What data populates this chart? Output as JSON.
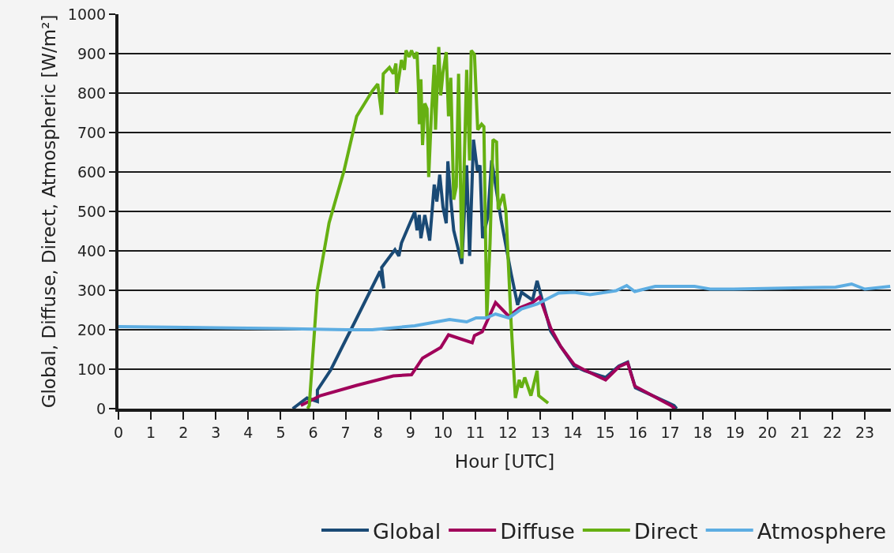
{
  "chart_data": {
    "type": "line",
    "xlabel": "Hour [UTC]",
    "ylabel": "Global, Diffuse, Direct, Atmospheric [W/m²]",
    "xlim": [
      0,
      23.8
    ],
    "xticks": [
      0,
      1,
      2,
      3,
      4,
      5,
      6,
      7,
      8,
      9,
      10,
      11,
      12,
      13,
      14,
      15,
      16,
      17,
      18,
      19,
      20,
      21,
      22,
      23
    ],
    "ylim": [
      0,
      1000
    ],
    "yticks": [
      0,
      100,
      200,
      300,
      400,
      500,
      600,
      700,
      800,
      900,
      1000
    ],
    "grid": "y",
    "legend": "bottom",
    "marker": "none",
    "line_style": "solid",
    "series": [
      {
        "name": "Global",
        "color": "#1a4a75",
        "x": [
          5.37,
          5.5,
          5.81,
          6.13,
          6.13,
          6.54,
          7.02,
          7.26,
          8.06,
          8.18,
          8.11,
          8.52,
          8.64,
          8.72,
          9.13,
          9.2,
          9.27,
          9.32,
          9.44,
          9.59,
          9.73,
          9.81,
          9.9,
          10.0,
          10.1,
          10.15,
          10.24,
          10.33,
          10.58,
          10.73,
          10.82,
          10.94,
          11.06,
          11.14,
          11.22,
          11.38,
          11.5,
          11.79,
          12.1,
          12.3,
          12.42,
          12.76,
          12.9,
          13.08,
          13.32,
          13.63,
          14.04,
          14.36,
          15.01,
          15.42,
          15.69,
          15.93,
          17.12,
          17.2
        ],
        "values": [
          0,
          8,
          27,
          18,
          47,
          98,
          177,
          216,
          348,
          305,
          358,
          403,
          387,
          420,
          499,
          452,
          491,
          432,
          491,
          426,
          568,
          525,
          593,
          511,
          470,
          627,
          530,
          452,
          367,
          617,
          387,
          682,
          603,
          617,
          432,
          485,
          629,
          479,
          342,
          263,
          295,
          275,
          324,
          269,
          196,
          157,
          108,
          96,
          79,
          108,
          118,
          53,
          8,
          0
        ]
      },
      {
        "name": "Diffuse",
        "color": "#a0005a",
        "x": [
          5.62,
          6.22,
          7.34,
          8.47,
          9.03,
          9.37,
          9.93,
          10.17,
          10.9,
          10.97,
          11.21,
          11.62,
          12.03,
          12.35,
          12.76,
          12.98,
          13.32,
          13.63,
          14.04,
          14.36,
          15.01,
          15.42,
          15.69,
          15.91,
          17.02,
          17.15
        ],
        "values": [
          8,
          33,
          59,
          83,
          86,
          128,
          155,
          187,
          167,
          185,
          195,
          269,
          234,
          255,
          269,
          283,
          204,
          157,
          112,
          98,
          73,
          106,
          116,
          57,
          8,
          0
        ]
      },
      {
        "name": "Direct",
        "color": "#66b012",
        "x": [
          5.83,
          5.88,
          6.13,
          6.49,
          6.95,
          7.34,
          7.82,
          7.99,
          8.11,
          8.16,
          8.35,
          8.47,
          8.55,
          8.57,
          8.72,
          8.81,
          8.86,
          8.96,
          9.03,
          9.13,
          9.2,
          9.25,
          9.27,
          9.32,
          9.37,
          9.44,
          9.51,
          9.56,
          9.64,
          9.73,
          9.77,
          9.87,
          9.93,
          10.0,
          10.1,
          10.17,
          10.24,
          10.33,
          10.41,
          10.48,
          10.58,
          10.73,
          10.82,
          10.87,
          10.97,
          11.07,
          11.19,
          11.26,
          11.35,
          11.45,
          11.54,
          11.65,
          11.7,
          11.86,
          11.94,
          12.1,
          12.23,
          12.35,
          12.42,
          12.52,
          12.71,
          12.9,
          12.95,
          13.24
        ],
        "values": [
          0,
          8,
          303,
          471,
          603,
          741,
          805,
          823,
          745,
          849,
          865,
          849,
          875,
          800,
          884,
          859,
          908,
          892,
          908,
          888,
          904,
          800,
          721,
          835,
          668,
          774,
          760,
          587,
          741,
          872,
          707,
          917,
          794,
          852,
          904,
          741,
          839,
          530,
          563,
          849,
          381,
          859,
          629,
          908,
          898,
          707,
          721,
          715,
          230,
          420,
          682,
          676,
          505,
          544,
          499,
          216,
          27,
          73,
          53,
          79,
          33,
          96,
          33,
          14
        ]
      },
      {
        "name": "Atmosphere",
        "color": "#5dade2",
        "x": [
          0,
          3,
          5,
          7.02,
          7.82,
          9.13,
          10.2,
          10.73,
          11.02,
          11.33,
          11.62,
          12.03,
          12.42,
          12.9,
          13.56,
          14.04,
          14.53,
          15.33,
          15.66,
          15.91,
          16.54,
          17.75,
          18.23,
          18.96,
          22.1,
          22.59,
          23.0,
          23.78
        ],
        "values": [
          208,
          205,
          203,
          200,
          200,
          210,
          226,
          220,
          230,
          230,
          240,
          230,
          253,
          265,
          293,
          295,
          289,
          299,
          312,
          297,
          310,
          310,
          303,
          303,
          308,
          316,
          303,
          310
        ]
      }
    ]
  }
}
